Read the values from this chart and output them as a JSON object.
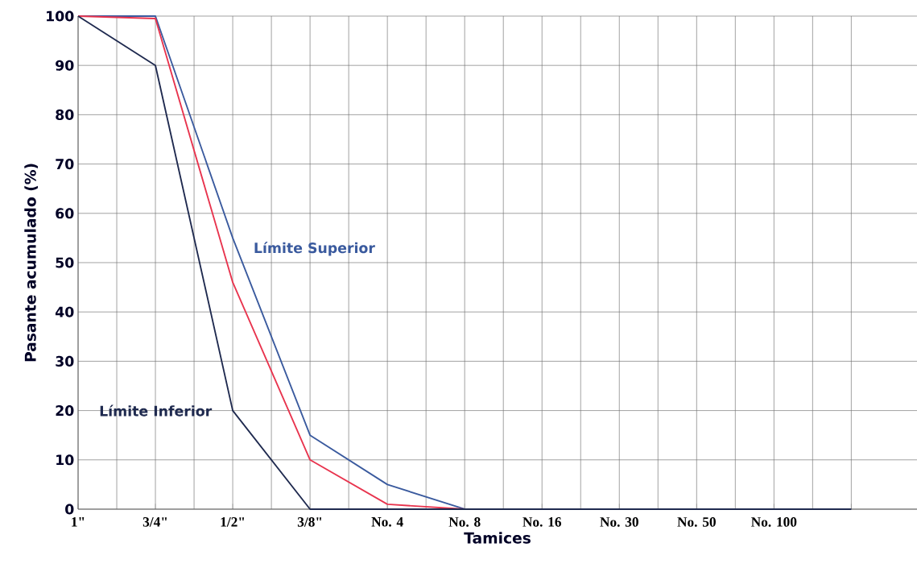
{
  "chart_data": {
    "type": "line",
    "xlabel": "Tamices",
    "ylabel": "Pasante acumulado (%)",
    "categories": [
      "1\"",
      "3/4\"",
      "1/2\"",
      "3/8\"",
      "No. 4",
      "No. 8",
      "No. 16",
      "No. 30",
      "No. 50",
      "No. 100",
      null
    ],
    "series": [
      {
        "name": "Límite Superior",
        "color": "#3a5a9e",
        "values": [
          100,
          100,
          55,
          15,
          5,
          0,
          0,
          null,
          null,
          null,
          null
        ]
      },
      {
        "color": "#e8344e",
        "values": [
          100,
          99.5,
          46,
          10,
          1,
          0,
          0,
          null,
          null,
          null,
          null
        ]
      },
      {
        "name": "Límite Inferior",
        "color": "#1f2a4f",
        "values": [
          100,
          90,
          20,
          0,
          0,
          0,
          0,
          0,
          0,
          0,
          0
        ]
      }
    ],
    "ylim": [
      0,
      100
    ],
    "yticks": [
      0,
      10,
      20,
      30,
      40,
      50,
      60,
      70,
      80,
      90,
      100
    ],
    "grid": true,
    "legend": false,
    "marker": "none",
    "line_style": "solid"
  }
}
